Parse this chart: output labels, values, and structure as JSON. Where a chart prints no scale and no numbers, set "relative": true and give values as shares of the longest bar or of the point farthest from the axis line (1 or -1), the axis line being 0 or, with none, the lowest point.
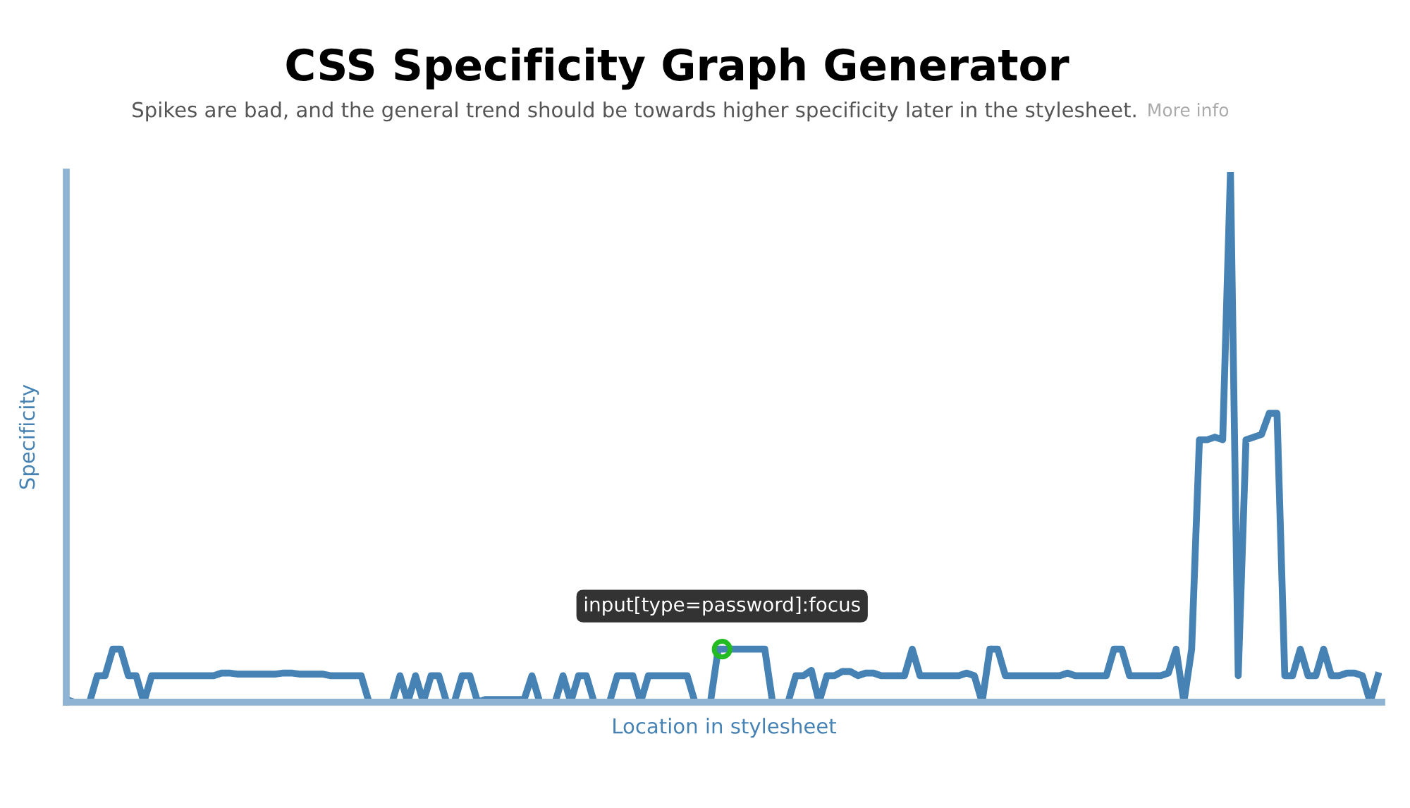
{
  "chart_data": {
    "type": "line",
    "title": "CSS Specificity Graph Generator",
    "subtitle": "Spikes are bad, and the general trend should be towards higher specificity later in the stylesheet.",
    "xlabel": "Location in stylesheet",
    "ylabel": "Specificity",
    "relative": true,
    "legend": false,
    "tick_labels": false,
    "marker": "none",
    "line_style": "solid",
    "annotations": [
      "More info",
      {
        "text": "input[type=password]:focus",
        "y": 0.1
      }
    ],
    "categories": [
      null,
      null,
      null,
      null,
      null,
      null,
      null,
      null,
      null,
      null,
      null,
      null,
      null,
      null,
      null,
      null,
      null,
      null,
      null,
      null,
      null,
      null,
      null,
      null,
      null,
      null,
      null,
      null,
      null,
      null,
      null,
      null,
      null,
      null,
      null,
      null,
      null,
      null,
      null,
      null,
      null,
      null,
      null,
      null,
      null,
      null,
      null,
      null,
      null,
      null,
      null,
      null,
      null,
      null,
      null,
      null,
      null,
      null,
      null,
      null,
      null,
      null,
      null,
      null,
      null,
      null,
      null,
      null,
      null,
      null,
      null,
      null,
      null,
      null,
      null,
      null,
      null,
      null,
      null,
      null,
      null,
      null,
      null,
      null,
      null,
      null,
      null,
      null,
      null,
      null,
      null,
      null,
      null,
      null,
      null,
      null,
      null,
      null,
      null,
      null,
      null,
      null,
      null,
      null,
      null,
      null,
      null,
      null,
      null,
      null,
      null,
      null,
      null,
      null,
      null,
      null,
      null,
      null,
      null,
      null,
      null,
      null,
      null,
      null,
      null,
      null,
      null,
      null,
      null,
      null,
      null,
      null,
      null,
      null,
      null,
      null,
      null,
      null,
      null,
      null,
      null,
      null,
      null,
      null,
      null,
      null,
      null,
      null,
      null,
      null,
      null,
      null,
      null,
      null,
      null,
      null,
      null,
      null,
      null,
      null,
      null,
      null,
      null,
      null,
      null,
      null,
      null,
      null,
      null,
      null
    ],
    "series": [
      {
        "color": "#4682b4",
        "values": [
          0.005,
          0,
          0,
          0,
          0.05,
          0.05,
          0.1,
          0.1,
          0.05,
          0.05,
          0,
          0.05,
          0.05,
          0.05,
          0.05,
          0.05,
          0.05,
          0.05,
          0.05,
          0.05,
          0.055,
          0.055,
          0.053,
          0.053,
          0.053,
          0.053,
          0.053,
          0.053,
          0.055,
          0.055,
          0.053,
          0.053,
          0.053,
          0.053,
          0.05,
          0.05,
          0.05,
          0.05,
          0.05,
          0,
          0,
          0,
          0,
          0.05,
          0,
          0.05,
          0,
          0.05,
          0.05,
          0,
          0,
          0.05,
          0.05,
          0,
          0.005,
          0.005,
          0.005,
          0.005,
          0.005,
          0.005,
          0.05,
          0,
          0,
          0,
          0.05,
          0,
          0.05,
          0.05,
          0,
          0,
          0,
          0.05,
          0.05,
          0.05,
          0,
          0.05,
          0.05,
          0.05,
          0.05,
          0.05,
          0.05,
          0,
          0,
          0,
          0.1,
          0.1,
          0.1,
          0.1,
          0.1,
          0.1,
          0.1,
          0,
          0,
          0,
          0.05,
          0.05,
          0.06,
          0,
          0.05,
          0.05,
          0.058,
          0.058,
          0.05,
          0.055,
          0.055,
          0.05,
          0.05,
          0.05,
          0.05,
          0.1,
          0.05,
          0.05,
          0.05,
          0.05,
          0.05,
          0.05,
          0.055,
          0.05,
          0,
          0.1,
          0.1,
          0.05,
          0.05,
          0.05,
          0.05,
          0.05,
          0.05,
          0.05,
          0.05,
          0.055,
          0.05,
          0.05,
          0.05,
          0.05,
          0.05,
          0.1,
          0.1,
          0.05,
          0.05,
          0.05,
          0.05,
          0.05,
          0.055,
          0.1,
          0,
          0.1,
          0.495,
          0.495,
          0.5,
          0.495,
          1.0,
          0.05,
          0.495,
          0.5,
          0.505,
          0.545,
          0.545,
          0.05,
          0.05,
          0.1,
          0.05,
          0.05,
          0.1,
          0.05,
          0.05,
          0.055,
          0.055,
          0.05,
          0,
          0.05
        ]
      }
    ]
  }
}
